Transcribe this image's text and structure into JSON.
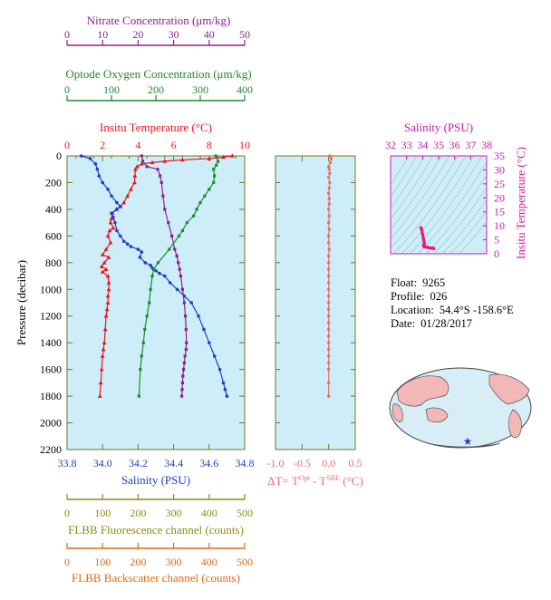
{
  "colors": {
    "nitrate": "#8e1f8e",
    "oxygen": "#1f8a2e",
    "temperature": "#e8141e",
    "salinity": "#1f3fc8",
    "fluorescence": "#8f8a12",
    "backscatter": "#e06a12",
    "delta_t": "#f06b6b",
    "ts_axis": "#cc18b4",
    "ts_data": "#e8187e",
    "plot_bg": "#cdeef8",
    "ocean": "#d8eef6",
    "land": "#f2b7b7",
    "axis": "#7a7420"
  },
  "info": {
    "float_label": "Float:",
    "float_value": "9265",
    "profile_label": "Profile:",
    "profile_value": "026",
    "location_label": "Location:",
    "location_value": "54.4°S  -158.6°E",
    "date_label": "Date:",
    "date_value": "01/28/2017"
  },
  "chart_data": [
    {
      "type": "line",
      "title": "",
      "ylabel": "Pressure (decibar)",
      "ylim": [
        2200,
        0
      ],
      "yticks": [
        "0",
        "200",
        "400",
        "600",
        "800",
        "1000",
        "1200",
        "1400",
        "1600",
        "1800",
        "2000",
        "2200"
      ],
      "axes": {
        "nitrate": {
          "label": "Nitrate Concentration (μm/kg)",
          "range": [
            0,
            50
          ],
          "ticks": [
            "0",
            "10",
            "20",
            "30",
            "40",
            "50"
          ]
        },
        "oxygen": {
          "label": "Optode Oxygen Concentration (μm/kg)",
          "range": [
            0,
            400
          ],
          "ticks": [
            "0",
            "100",
            "200",
            "300",
            "400"
          ]
        },
        "temperature": {
          "label": "Insitu Temperature (°C)",
          "range": [
            0,
            10
          ],
          "ticks": [
            "0",
            "2",
            "4",
            "6",
            "8",
            "10"
          ]
        },
        "salinity": {
          "label": "Salinity (PSU)",
          "range": [
            33.8,
            34.8
          ],
          "ticks": [
            "33.8",
            "34.0",
            "34.2",
            "34.4",
            "34.6",
            "34.8"
          ]
        },
        "fluorescence": {
          "label": "FLBB Fluorescence channel (counts)",
          "range": [
            0,
            500
          ],
          "ticks": [
            "0",
            "100",
            "200",
            "300",
            "400",
            "500"
          ]
        },
        "backscatter": {
          "label": "FLBB Backscatter channel (counts)",
          "range": [
            0,
            500
          ],
          "ticks": [
            "0",
            "100",
            "200",
            "300",
            "400",
            "500"
          ]
        }
      },
      "series": [
        {
          "key": "temperature",
          "marker": "triangle",
          "x": [
            9.3,
            8.8,
            8.0,
            6.5,
            5.5,
            4.8,
            4.2,
            3.95,
            3.85,
            3.82,
            3.8,
            3.6,
            3.4,
            3.2,
            3.0,
            2.8,
            2.55,
            2.5,
            2.45,
            2.6,
            2.4,
            2.3,
            2.45,
            2.2,
            2.0,
            2.35,
            2.1,
            1.95,
            2.2,
            2.0,
            2.3,
            2.35,
            2.35,
            2.3,
            2.3,
            2.25,
            2.2,
            2.15,
            2.1,
            2.05,
            2.0,
            1.95,
            1.9,
            1.85
          ],
          "y": [
            0,
            10,
            20,
            30,
            40,
            50,
            60,
            80,
            100,
            150,
            200,
            250,
            300,
            350,
            380,
            400,
            430,
            470,
            500,
            540,
            560,
            600,
            650,
            700,
            740,
            760,
            800,
            830,
            850,
            870,
            900,
            950,
            1000,
            1050,
            1100,
            1150,
            1200,
            1300,
            1400,
            1450,
            1500,
            1600,
            1700,
            1800
          ]
        },
        {
          "key": "salinity",
          "marker": "circle",
          "x": [
            33.88,
            33.93,
            33.96,
            33.97,
            33.98,
            34.0,
            34.03,
            34.05,
            34.08,
            34.1,
            34.08,
            34.05,
            34.06,
            34.07,
            34.08,
            34.1,
            34.12,
            34.14,
            34.16,
            34.2,
            34.22,
            34.21,
            34.24,
            34.27,
            34.28,
            34.3,
            34.32,
            34.35,
            34.38,
            34.42,
            34.46,
            34.5,
            34.54,
            34.57,
            34.6,
            34.63,
            34.66,
            34.68,
            34.69,
            34.7
          ],
          "y": [
            0,
            20,
            60,
            100,
            150,
            200,
            250,
            300,
            350,
            380,
            400,
            430,
            460,
            500,
            560,
            600,
            640,
            660,
            680,
            700,
            720,
            760,
            800,
            820,
            840,
            860,
            880,
            900,
            950,
            1000,
            1050,
            1100,
            1200,
            1300,
            1400,
            1500,
            1600,
            1700,
            1750,
            1800
          ]
        },
        {
          "key": "nitrate",
          "marker": "square",
          "x": [
            21.0,
            21.3,
            22.5,
            25.5,
            26.2,
            26.6,
            27.0,
            27.5,
            28.5,
            29.5,
            30.3,
            30.9,
            31.3,
            31.7,
            32.0,
            32.5,
            33.0,
            33.3,
            33.5,
            33.6,
            33.5,
            33.2,
            33.0,
            32.8,
            32.6,
            32.5,
            32.4,
            32.3
          ],
          "y": [
            0,
            40,
            80,
            100,
            150,
            200,
            300,
            400,
            500,
            600,
            700,
            750,
            800,
            850,
            900,
            1000,
            1100,
            1200,
            1300,
            1400,
            1450,
            1500,
            1550,
            1600,
            1650,
            1700,
            1750,
            1800
          ]
        },
        {
          "key": "oxygen",
          "marker": "square",
          "x": [
            335,
            340,
            336,
            330,
            332,
            330,
            320,
            310,
            300,
            292,
            285,
            270,
            260,
            252,
            230,
            205,
            195,
            192,
            188,
            185,
            180,
            175,
            172,
            168,
            165,
            162
          ],
          "y": [
            0,
            40,
            70,
            100,
            150,
            200,
            250,
            300,
            350,
            400,
            450,
            500,
            560,
            600,
            700,
            800,
            850,
            900,
            1000,
            1100,
            1200,
            1300,
            1400,
            1500,
            1600,
            1800
          ]
        }
      ]
    },
    {
      "type": "scatter",
      "title": "",
      "xlabel": "ΔT= T^Opt - T^SBE (°C)",
      "xlim": [
        -1.0,
        0.5
      ],
      "xticks": [
        "-1.0",
        "-0.5",
        "0.0",
        "0.5"
      ],
      "ylim": [
        2200,
        0
      ],
      "x": [
        0.02,
        0.05,
        0.03,
        0.0,
        0.01,
        0.02,
        0.0,
        0.02,
        0.01,
        0.0,
        0.01,
        0.01,
        0.0,
        0.01,
        0.0,
        0.01,
        0.0,
        0.0,
        0.01,
        0.0,
        0.0,
        0.0,
        0.0,
        0.0,
        0.0,
        0.0,
        0.0,
        0.0,
        0.0,
        0.0,
        0.0,
        0.0,
        0.0,
        0.0,
        0.0,
        0.0,
        0.0,
        0.0,
        0.0
      ],
      "y": [
        0,
        20,
        50,
        80,
        100,
        130,
        160,
        200,
        240,
        280,
        320,
        360,
        400,
        450,
        500,
        550,
        600,
        650,
        700,
        750,
        800,
        850,
        900,
        950,
        1000,
        1050,
        1100,
        1150,
        1200,
        1250,
        1300,
        1350,
        1400,
        1450,
        1500,
        1550,
        1600,
        1700,
        1800
      ]
    },
    {
      "type": "scatter",
      "title": "",
      "xlabel": "Salinity (PSU)",
      "ylabel": "Insitu Temperature (°C)",
      "xlim": [
        32,
        38
      ],
      "ylim": [
        0,
        35
      ],
      "xticks": [
        "32",
        "33",
        "34",
        "35",
        "36",
        "37",
        "38"
      ],
      "yticks": [
        "0",
        "5",
        "10",
        "15",
        "20",
        "25",
        "30",
        "35"
      ],
      "x": [
        33.9,
        33.95,
        34.0,
        34.05,
        34.1,
        34.1,
        34.05,
        34.1,
        34.2,
        34.3,
        34.45,
        34.6,
        34.7
      ],
      "y": [
        9.3,
        8.5,
        7.0,
        5.5,
        4.0,
        3.6,
        3.0,
        2.5,
        2.4,
        2.3,
        2.1,
        2.0,
        1.9
      ]
    }
  ]
}
